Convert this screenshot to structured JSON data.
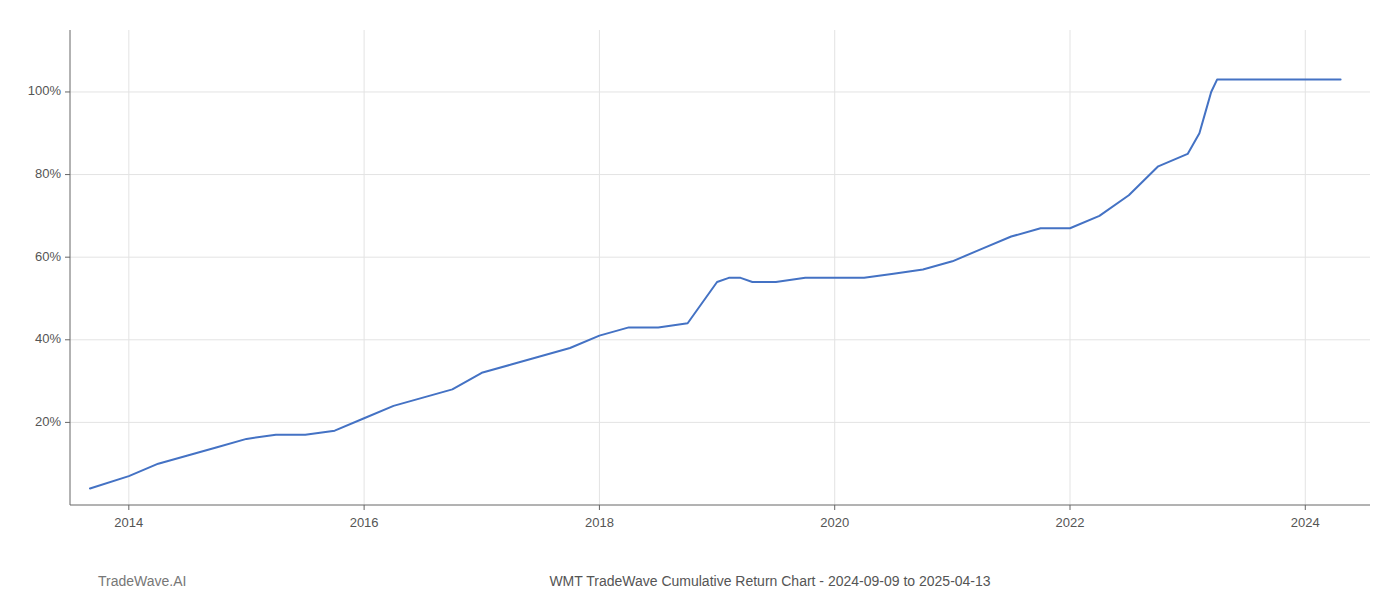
{
  "chart_data": {
    "type": "line",
    "title": "WMT TradeWave Cumulative Return Chart - 2024-09-09 to 2025-04-13",
    "annotations": [
      "TradeWave.AI"
    ],
    "x": [
      2013.67,
      2014.0,
      2014.25,
      2014.5,
      2014.75,
      2015.0,
      2015.25,
      2015.5,
      2015.75,
      2016.0,
      2016.25,
      2016.5,
      2016.75,
      2017.0,
      2017.25,
      2017.5,
      2017.75,
      2018.0,
      2018.25,
      2018.5,
      2018.75,
      2019.0,
      2019.1,
      2019.2,
      2019.3,
      2019.5,
      2019.75,
      2019.9,
      2020.0,
      2020.1,
      2020.25,
      2020.5,
      2020.75,
      2021.0,
      2021.25,
      2021.5,
      2021.75,
      2022.0,
      2022.25,
      2022.5,
      2022.75,
      2023.0,
      2023.1,
      2023.15,
      2023.2,
      2023.25,
      2023.5,
      2023.75,
      2024.0,
      2024.15,
      2024.3
    ],
    "values": [
      4,
      7,
      10,
      12,
      14,
      16,
      17,
      17,
      18,
      21,
      24,
      26,
      28,
      32,
      34,
      36,
      38,
      41,
      43,
      43,
      44,
      54,
      55,
      55,
      54,
      54,
      55,
      55,
      55,
      55,
      55,
      56,
      57,
      59,
      62,
      65,
      67,
      67,
      70,
      75,
      82,
      85,
      90,
      95,
      100,
      103,
      103,
      103,
      103,
      103,
      103
    ],
    "color": "#4472C4",
    "xlim": [
      2013.5,
      2024.55
    ],
    "ylim": [
      0,
      115
    ],
    "xticks": [
      2014,
      2016,
      2018,
      2020,
      2022,
      2024
    ],
    "yticks": [
      {
        "value": 20,
        "label": "20%"
      },
      {
        "value": 40,
        "label": "40%"
      },
      {
        "value": 60,
        "label": "60%"
      },
      {
        "value": 80,
        "label": "80%"
      },
      {
        "value": 100,
        "label": "100%"
      }
    ],
    "grid": true
  }
}
